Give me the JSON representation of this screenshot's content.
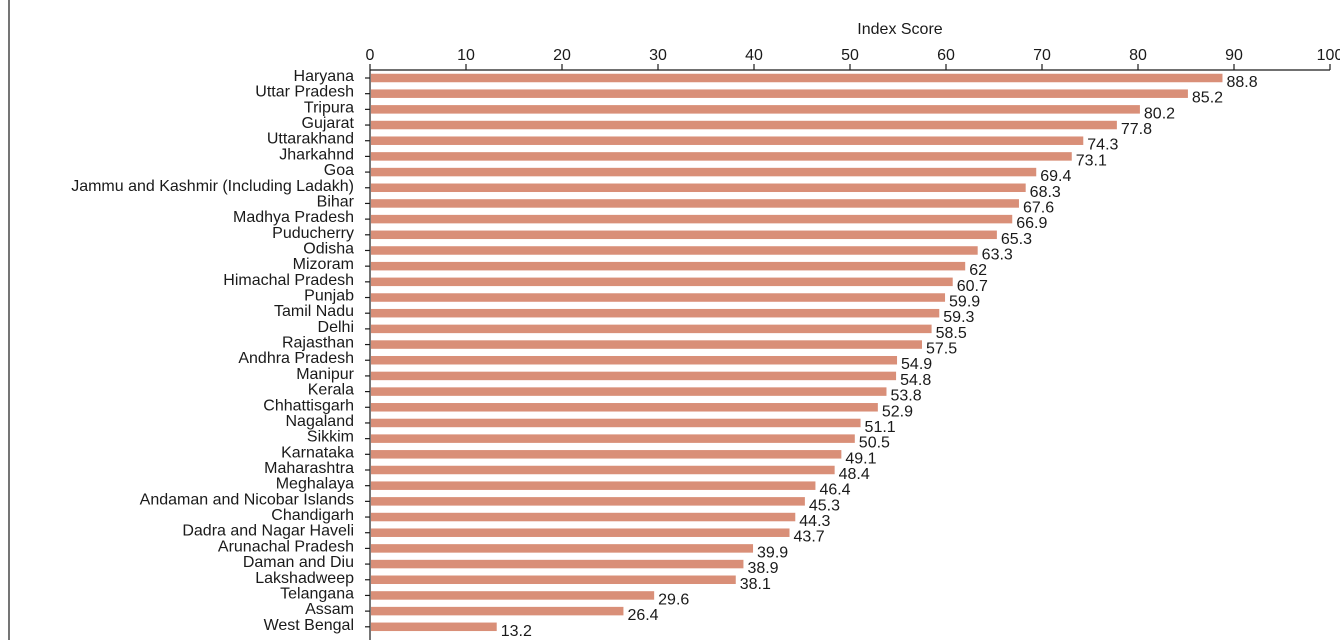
{
  "chart_data": {
    "type": "bar",
    "orientation": "horizontal",
    "xlabel": "Index Score",
    "xlim": [
      0,
      100
    ],
    "x_ticks": [
      0,
      10,
      20,
      30,
      40,
      50,
      60,
      70,
      80,
      90,
      100
    ],
    "x_tick_labels": [
      "0",
      "10",
      "20",
      "30",
      "40",
      "50",
      "60",
      "70",
      "80",
      "90",
      "100"
    ],
    "x_axis_position": "top",
    "grid": false,
    "legend": "none",
    "bar_color": "#d98f78",
    "categories": [
      "Haryana",
      "Uttar Pradesh",
      "Tripura",
      "Gujarat",
      "Uttarakhand",
      "Jharkahnd",
      "Goa",
      "Jammu and Kashmir (Including Ladakh)",
      "Bihar",
      "Madhya Pradesh",
      "Puducherry",
      "Odisha",
      "Mizoram",
      "Himachal Pradesh",
      "Punjab",
      "Tamil Nadu",
      "Delhi",
      "Rajasthan",
      "Andhra Pradesh",
      "Manipur",
      "Kerala",
      "Chhattisgarh",
      "Nagaland",
      "Sikkim",
      "Karnataka",
      "Maharashtra",
      "Meghalaya",
      "Andaman and Nicobar Islands",
      "Chandigarh",
      "Dadra and Nagar Haveli",
      "Arunachal Pradesh",
      "Daman and Diu",
      "Lakshadweep",
      "Telangana",
      "Assam",
      "West Bengal"
    ],
    "values": [
      88.8,
      85.2,
      80.2,
      77.8,
      74.3,
      73.1,
      69.4,
      68.3,
      67.6,
      66.9,
      65.3,
      63.3,
      62,
      60.7,
      59.9,
      59.3,
      58.5,
      57.5,
      54.9,
      54.8,
      53.8,
      52.9,
      51.1,
      50.5,
      49.1,
      48.4,
      46.4,
      45.3,
      44.3,
      43.7,
      39.9,
      38.9,
      38.1,
      29.6,
      26.4,
      13.2
    ],
    "value_labels": [
      "88.8",
      "85.2",
      "80.2",
      "77.8",
      "74.3",
      "73.1",
      "69.4",
      "68.3",
      "67.6",
      "66.9",
      "65.3",
      "63.3",
      "62",
      "60.7",
      "59.9",
      "59.3",
      "58.5",
      "57.5",
      "54.9",
      "54.8",
      "53.8",
      "52.9",
      "51.1",
      "50.5",
      "49.1",
      "48.4",
      "46.4",
      "45.3",
      "44.3",
      "43.7",
      "39.9",
      "38.9",
      "38.1",
      "29.6",
      "26.4",
      "13.2"
    ]
  }
}
